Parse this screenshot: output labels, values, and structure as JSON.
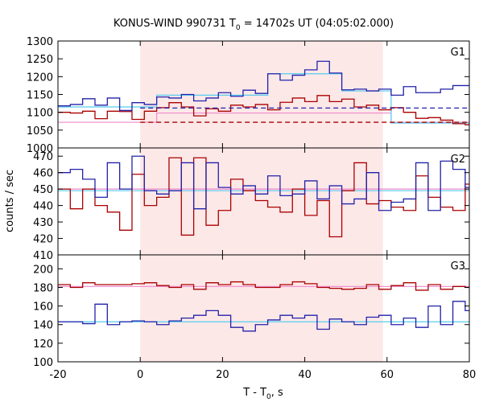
{
  "chart_data": {
    "type": "line",
    "title": "KONUS-WIND 990731 T₀ = 14702s UT (04:05:02.000)",
    "title_parts": {
      "prefix": "KONUS-WIND 990731 T",
      "sub": "0",
      "suffix": " = 14702s UT (04:05:02.000)"
    },
    "xlabel_parts": {
      "prefix": "T - T",
      "sub": "0",
      "suffix": ", s"
    },
    "ylabel": "counts / sec",
    "xlim": [
      -20,
      80
    ],
    "xticks": [
      -20,
      0,
      20,
      40,
      60,
      80
    ],
    "highlight_interval": [
      0,
      59
    ],
    "colors": {
      "highlight": "#fde8e8",
      "blue": "#2222aa",
      "red": "#aa0000",
      "cyan": "#55ccee",
      "pink": "#ee88cc"
    },
    "bin_edges": [
      -20,
      -17,
      -14,
      -11,
      -8,
      -5,
      -2,
      1,
      4,
      7,
      10,
      13,
      16,
      19,
      22,
      25,
      28,
      31,
      34,
      37,
      40,
      43,
      46,
      49,
      52,
      55,
      58,
      61,
      64,
      67,
      70,
      73,
      76,
      79,
      80
    ],
    "panels": [
      {
        "label": "G1",
        "ylim": [
          1000,
          1300
        ],
        "yticks": [
          1000,
          1050,
          1100,
          1150,
          1200,
          1250,
          1300
        ],
        "series": [
          {
            "color": "blue",
            "style": "step",
            "values": [
              1118,
              1122,
              1138,
              1120,
              1140,
              1105,
              1127,
              1122,
              1143,
              1140,
              1150,
              1132,
              1140,
              1155,
              1145,
              1162,
              1153,
              1208,
              1190,
              1204,
              1219,
              1243,
              1210,
              1163,
              1165,
              1160,
              1165,
              1148,
              1172,
              1155,
              1155,
              1165,
              1175,
              1175
            ]
          },
          {
            "color": "red",
            "style": "step",
            "values": [
              1100,
              1098,
              1103,
              1082,
              1103,
              1102,
              1080,
              1103,
              1113,
              1127,
              1115,
              1090,
              1110,
              1103,
              1120,
              1115,
              1122,
              1107,
              1128,
              1140,
              1130,
              1147,
              1130,
              1137,
              1115,
              1120,
              1107,
              1113,
              1100,
              1083,
              1085,
              1078,
              1068,
              1065
            ]
          },
          {
            "color": "cyan",
            "style": "step",
            "values": [
              1115,
              1115,
              1115,
              1115,
              1115,
              1115,
              1115,
              1115,
              1148,
              1148,
              1148,
              1148,
              1148,
              1148,
              1148,
              1148,
              1148,
              1208,
              1208,
              1208,
              1208,
              1208,
              1208,
              1160,
              1160,
              1160,
              1160,
              1070,
              1070,
              1070,
              1070,
              1070,
              1070,
              1070
            ]
          },
          {
            "color": "pink",
            "style": "step",
            "values": [
              1072,
              1072,
              1072,
              1072,
              1072,
              1072,
              1072,
              1072,
              1098,
              1098,
              1098,
              1098,
              1098,
              1098,
              1098,
              1098,
              1098,
              1098,
              1098,
              1098,
              1098,
              1098,
              1098,
              1098,
              1098,
              1098,
              1098,
              1072,
              1072,
              1072,
              1072,
              1072,
              1072,
              1072
            ]
          },
          {
            "color": "blue",
            "style": "dashed",
            "x": [
              0,
              80
            ],
            "values": [
              1112,
              1112
            ]
          },
          {
            "color": "red",
            "style": "dashed",
            "x": [
              0,
              80
            ],
            "values": [
              1072,
              1072
            ]
          }
        ]
      },
      {
        "label": "G2",
        "ylim": [
          410,
          475
        ],
        "yticks": [
          410,
          420,
          430,
          440,
          450,
          460,
          470
        ],
        "series": [
          {
            "color": "blue",
            "style": "step",
            "values": [
              460,
              462,
              456,
              445,
              466,
              450,
              470,
              449,
              447,
              449,
              466,
              438,
              466,
              451,
              447,
              452,
              447,
              458,
              446,
              447,
              455,
              444,
              452,
              441,
              444,
              460,
              437,
              442,
              444,
              466,
              437,
              467,
              462,
              451
            ]
          },
          {
            "color": "red",
            "style": "step",
            "values": [
              450,
              438,
              450,
              440,
              436,
              425,
              459,
              440,
              445,
              469,
              422,
              469,
              428,
              437,
              456,
              449,
              443,
              439,
              436,
              450,
              434,
              443,
              421,
              449,
              466,
              441,
              443,
              439,
              437,
              458,
              445,
              439,
              437,
              453
            ]
          },
          {
            "color": "cyan",
            "style": "step",
            "values": [
              449,
              449,
              449,
              449,
              449,
              449,
              449,
              449,
              449,
              449,
              449,
              449,
              449,
              449,
              449,
              449,
              449,
              449,
              449,
              449,
              449,
              449,
              449,
              449,
              449,
              449,
              449,
              449,
              449,
              449,
              449,
              449,
              449,
              449
            ]
          },
          {
            "color": "pink",
            "style": "step",
            "values": [
              450,
              450,
              450,
              450,
              450,
              450,
              450,
              450,
              450,
              450,
              450,
              450,
              450,
              450,
              450,
              450,
              450,
              450,
              450,
              450,
              450,
              450,
              450,
              450,
              450,
              450,
              450,
              450,
              450,
              450,
              450,
              450,
              450,
              450
            ]
          }
        ]
      },
      {
        "label": "G3",
        "ylim": [
          100,
          215
        ],
        "yticks": [
          100,
          120,
          140,
          160,
          180,
          200
        ],
        "series": [
          {
            "color": "blue",
            "style": "step",
            "values": [
              143,
              143,
              141,
              162,
              140,
              143,
              144,
              143,
              140,
              144,
              147,
              150,
              155,
              150,
              137,
              133,
              140,
              145,
              150,
              147,
              150,
              135,
              146,
              143,
              140,
              148,
              150,
              140,
              147,
              137,
              160,
              140,
              165,
              155
            ]
          },
          {
            "color": "red",
            "style": "step",
            "values": [
              183,
              180,
              185,
              183,
              183,
              183,
              184,
              185,
              182,
              180,
              183,
              178,
              185,
              183,
              186,
              183,
              180,
              180,
              183,
              186,
              184,
              180,
              179,
              178,
              179,
              183,
              178,
              182,
              185,
              177,
              183,
              178,
              181,
              180
            ]
          },
          {
            "color": "cyan",
            "style": "step",
            "values": [
              143,
              143,
              143,
              143,
              143,
              143,
              143,
              143,
              143,
              143,
              143,
              143,
              143,
              143,
              143,
              143,
              143,
              143,
              143,
              143,
              143,
              143,
              143,
              143,
              143,
              143,
              143,
              143,
              143,
              143,
              143,
              143,
              143,
              143
            ]
          },
          {
            "color": "pink",
            "style": "step",
            "values": [
              181,
              181,
              181,
              181,
              181,
              181,
              181,
              181,
              181,
              181,
              181,
              181,
              181,
              181,
              181,
              181,
              181,
              181,
              181,
              181,
              181,
              181,
              181,
              181,
              181,
              181,
              181,
              181,
              181,
              181,
              181,
              181,
              181,
              181
            ]
          }
        ]
      }
    ]
  }
}
